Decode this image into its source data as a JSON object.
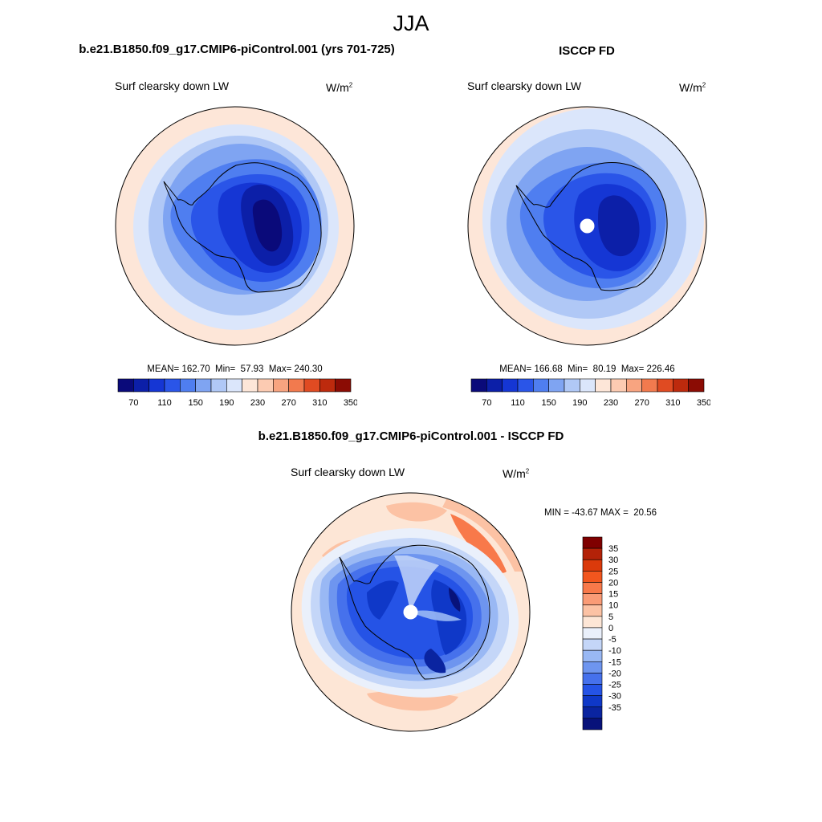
{
  "figure": {
    "title": "JJA"
  },
  "chart_data": [
    {
      "type": "heatmap",
      "projection": "south-polar-stereographic",
      "title": "b.e21.B1850.f09_g17.CMIP6-piControl.001 (yrs 701-725)",
      "variable": "Surf clearsky down LW",
      "units": "W/m",
      "units_exp": "2",
      "stats": {
        "mean_label": "MEAN=",
        "mean": "162.70",
        "min_label": "Min=",
        "min": "57.93",
        "max_label": "Max=",
        "max": "240.30"
      },
      "colorbar": {
        "orientation": "horizontal",
        "tick_labels": [
          "70",
          "110",
          "150",
          "190",
          "230",
          "270",
          "310",
          "350"
        ],
        "colors": [
          "#0a0a7a",
          "#0c1fa8",
          "#1536d4",
          "#2a55e8",
          "#4f7ef0",
          "#7fa4f2",
          "#b0c8f6",
          "#dbe6fb",
          "#fde6d8",
          "#fccbb2",
          "#f8a480",
          "#f27a4e",
          "#e04b22",
          "#bd2a0d",
          "#8b0c04"
        ]
      },
      "grid": false
    },
    {
      "type": "heatmap",
      "projection": "south-polar-stereographic",
      "title": "ISCCP FD",
      "variable": "Surf clearsky down LW",
      "units": "W/m",
      "units_exp": "2",
      "stats": {
        "mean_label": "MEAN=",
        "mean": "166.68",
        "min_label": "Min=",
        "min": "80.19",
        "max_label": "Max=",
        "max": "226.46"
      },
      "colorbar": {
        "orientation": "horizontal",
        "tick_labels": [
          "70",
          "110",
          "150",
          "190",
          "230",
          "270",
          "310",
          "350"
        ],
        "colors": [
          "#0a0a7a",
          "#0c1fa8",
          "#1536d4",
          "#2a55e8",
          "#4f7ef0",
          "#7fa4f2",
          "#b0c8f6",
          "#dbe6fb",
          "#fde6d8",
          "#fccbb2",
          "#f8a480",
          "#f27a4e",
          "#e04b22",
          "#bd2a0d",
          "#8b0c04"
        ]
      },
      "grid": false
    },
    {
      "type": "heatmap",
      "projection": "south-polar-stereographic",
      "title": "b.e21.B1850.f09_g17.CMIP6-piControl.001 - ISCCP FD",
      "variable": "Surf clearsky down LW",
      "units": "W/m",
      "units_exp": "2",
      "stats": {
        "text": "MIN = -43.67 MAX =  20.56"
      },
      "colorbar": {
        "orientation": "vertical",
        "tick_labels": [
          "35",
          "30",
          "25",
          "20",
          "15",
          "10",
          "5",
          "0",
          "-5",
          "-10",
          "-15",
          "-20",
          "-25",
          "-30",
          "-35"
        ],
        "colors": [
          "#7f0000",
          "#b32208",
          "#db3a0b",
          "#f2561e",
          "#f8794a",
          "#fa9b76",
          "#fcc2a4",
          "#fde6d6",
          "#eaf0fb",
          "#c4d6f8",
          "#99b8f4",
          "#6e95ef",
          "#4671ec",
          "#2553e6",
          "#0f38c8",
          "#0a24a0",
          "#08127a"
        ]
      },
      "grid": false
    }
  ]
}
